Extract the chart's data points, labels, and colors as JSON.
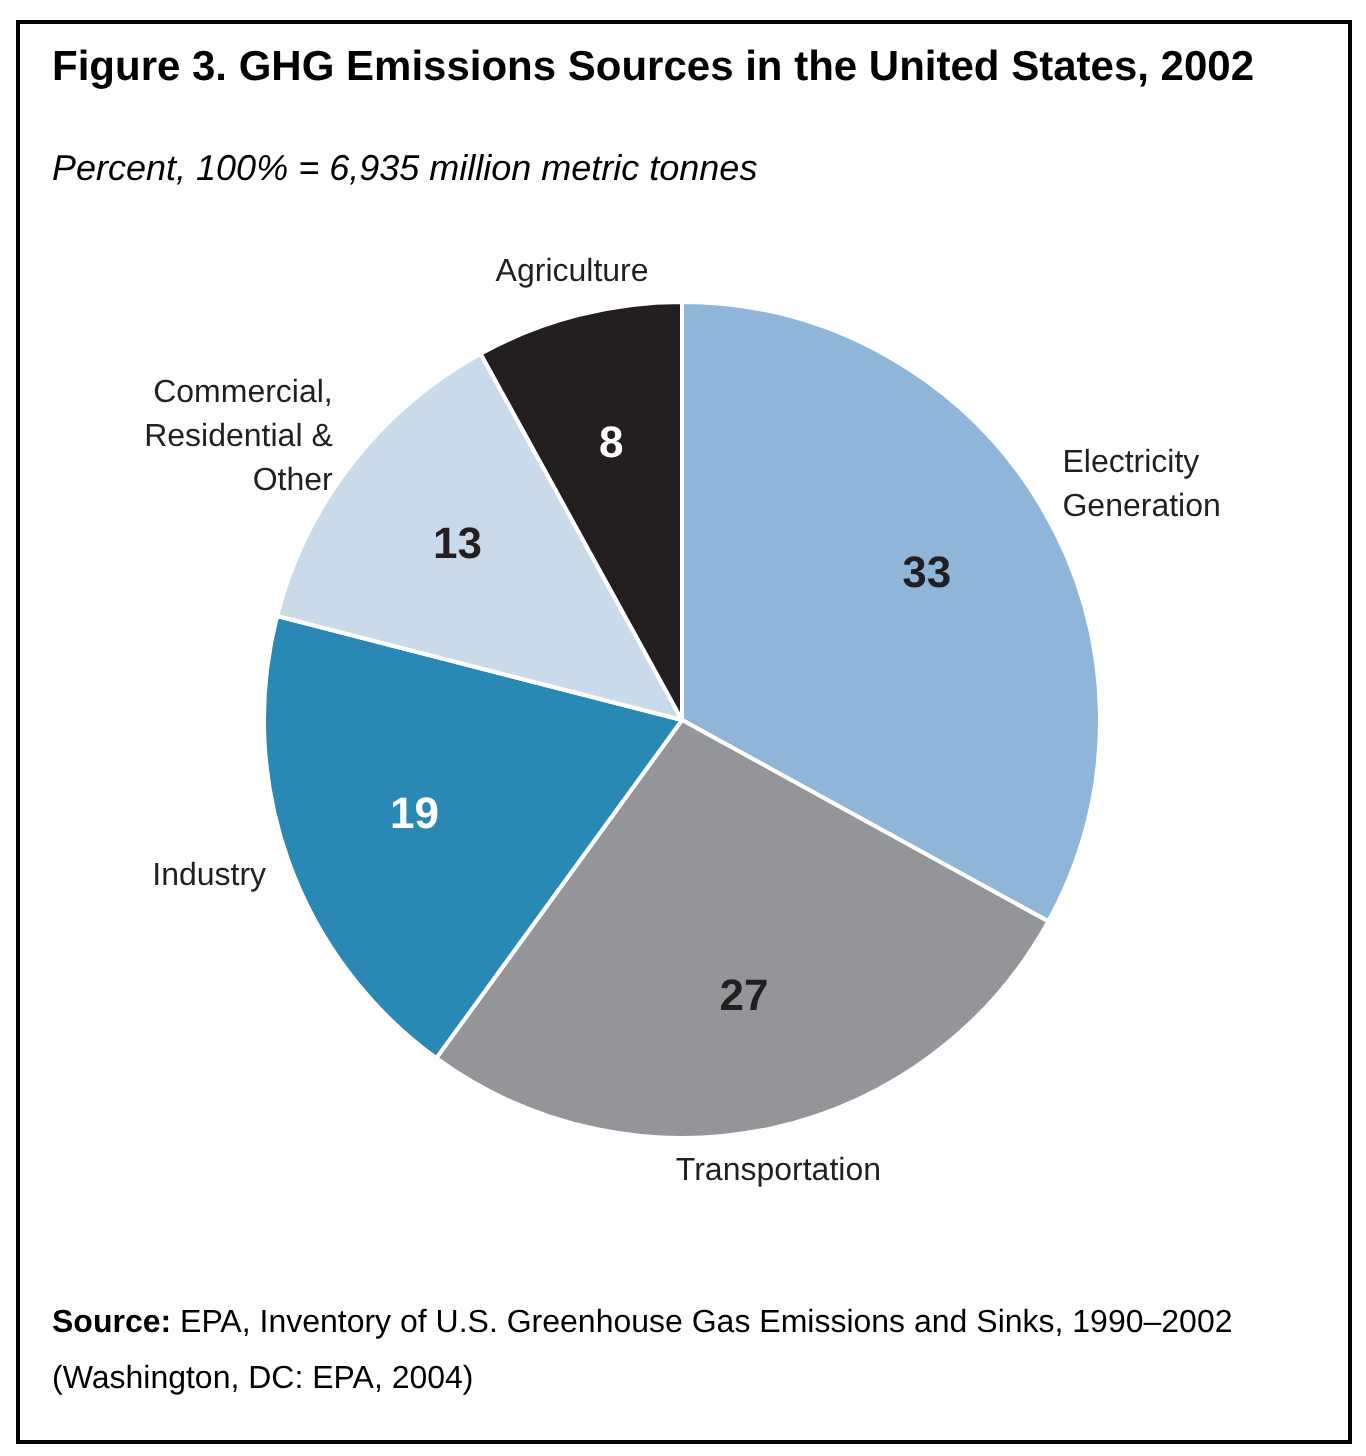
{
  "chart_data": {
    "type": "pie",
    "title": "Figure 3.  GHG Emissions Sources in the United States, 2002",
    "subtitle": "Percent, 100% = 6,935 million metric tonnes",
    "categories": [
      "Electricity Generation",
      "Transportation",
      "Industry",
      "Commercial, Residential & Other",
      "Agriculture"
    ],
    "values": [
      33,
      27,
      19,
      13,
      8
    ],
    "colors": [
      "#8fb6d8",
      "#939598",
      "#2a88b4",
      "#c9dbea",
      "#231f20"
    ],
    "data_labels": true,
    "legend": false,
    "annotations": [
      "Source: EPA, Inventory of U.S. Greenhouse Gas Emissions and Sinks, 1990–2002 (Washington, DC: EPA, 2004)"
    ]
  }
}
